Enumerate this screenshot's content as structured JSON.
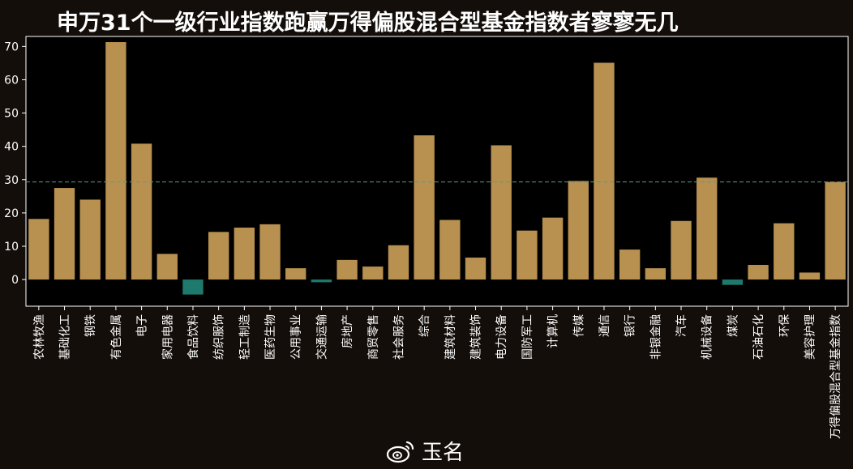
{
  "title": "申万31个一级行业指数跑赢万得偏股混合型基金指数者寥寥无几",
  "watermark": {
    "text": "玉名",
    "icon": "weibo-logo"
  },
  "colors": {
    "background": "#140e0a",
    "plot_background": "#000000",
    "positive_bar": "#b89050",
    "negative_bar": "#1f7a6e",
    "reference_line": "#5a9a8a",
    "text": "#ffffff"
  },
  "chart_data": {
    "type": "bar",
    "title": "申万31个一级行业指数跑赢万得偏股混合型基金指数者寥寥无几",
    "xlabel": "",
    "ylabel": "",
    "ylim": [
      -8,
      73
    ],
    "yticks": [
      0,
      10,
      20,
      30,
      40,
      50,
      60,
      70
    ],
    "reference_line": {
      "value": 29.3,
      "style": "dashed"
    },
    "grid": false,
    "categories": [
      "农林牧渔",
      "基础化工",
      "钢铁",
      "有色金属",
      "电子",
      "家用电器",
      "食品饮料",
      "纺织服饰",
      "轻工制造",
      "医药生物",
      "公用事业",
      "交通运输",
      "房地产",
      "商贸零售",
      "社会服务",
      "综合",
      "建筑材料",
      "建筑装饰",
      "电力设备",
      "国防军工",
      "计算机",
      "传媒",
      "通信",
      "银行",
      "非银金融",
      "汽车",
      "机械设备",
      "煤炭",
      "石油石化",
      "环保",
      "美容护理",
      "万得偏股混合型基金指数"
    ],
    "values": [
      18.2,
      27.5,
      24.0,
      71.3,
      40.8,
      7.7,
      -4.5,
      14.3,
      15.6,
      16.6,
      3.4,
      -0.8,
      5.9,
      3.9,
      10.3,
      43.3,
      17.9,
      6.6,
      40.3,
      14.7,
      18.6,
      29.6,
      65.1,
      9.0,
      3.4,
      17.6,
      30.6,
      -1.6,
      4.4,
      16.9,
      2.1,
      29.3
    ]
  }
}
